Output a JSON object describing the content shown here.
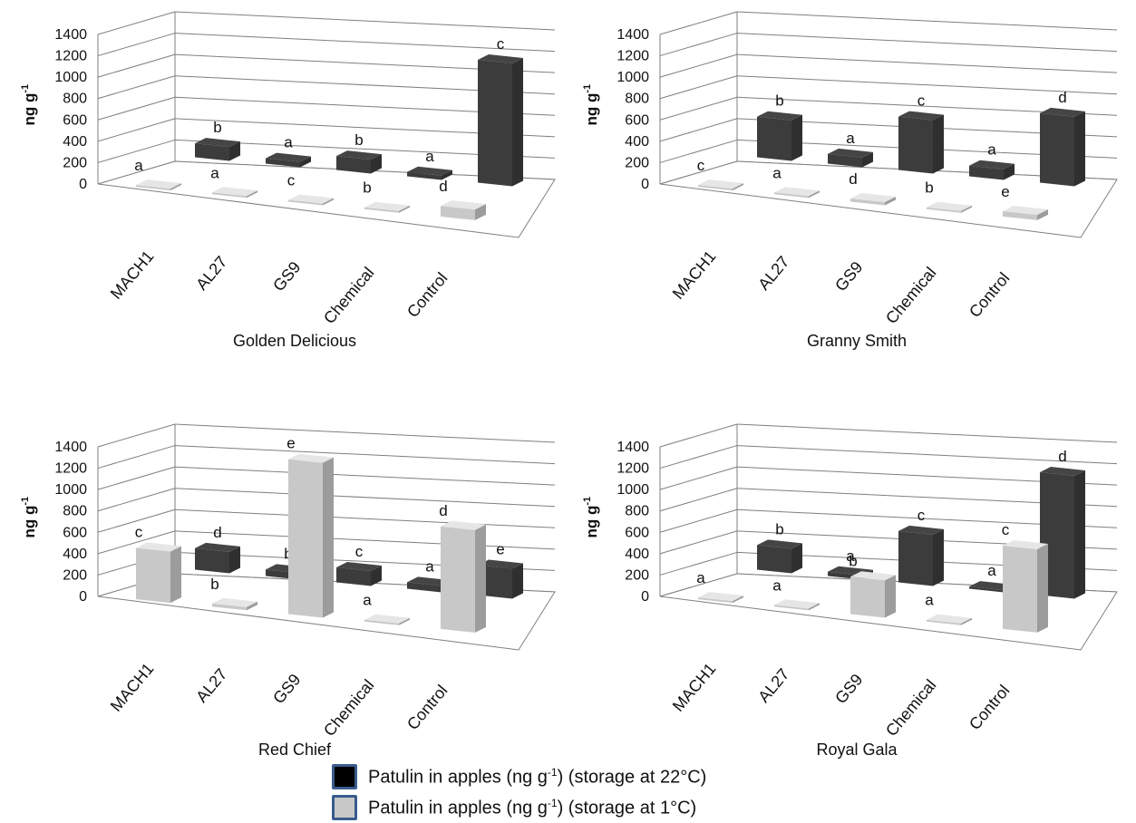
{
  "figure": {
    "yticks": [
      "0",
      "200",
      "400",
      "600",
      "800",
      "1000",
      "1200",
      "1400"
    ],
    "ylabel_main": "ng g",
    "ylabel_sup": "-1",
    "categories": [
      "MACH1",
      "AL27",
      "GS9",
      "Chemical",
      "Control"
    ],
    "colors": {
      "storage_22": "#3c3c3c",
      "storage_1": "#c8c8c8",
      "grid": "#7f7f7f"
    }
  },
  "legend": {
    "items": [
      {
        "pre": "Patulin in apples (ng g",
        "sup": "-1",
        "post": ") (storage at 22°C)",
        "color": "#000000"
      },
      {
        "pre": "Patulin in apples (ng g",
        "sup": "-1",
        "post": ") (storage at 1°C)",
        "color": "#c8c8c8"
      }
    ]
  },
  "chart_data": [
    {
      "type": "bar",
      "title": "Golden Delicious",
      "ylabel": "ng g-1",
      "ylim": [
        0,
        1400
      ],
      "yticks": [
        0,
        200,
        400,
        600,
        800,
        1000,
        1200,
        1400
      ],
      "categories": [
        "MACH1",
        "AL27",
        "GS9",
        "Chemical",
        "Control"
      ],
      "series": [
        {
          "name": "Patulin in apples (ng g-1) (storage at 22°C)",
          "values": [
            130,
            50,
            130,
            40,
            1150
          ],
          "letters": [
            "b",
            "a",
            "b",
            "a",
            "c"
          ]
        },
        {
          "name": "Patulin in apples (ng g-1) (storage at 1°C)",
          "values": [
            0,
            0,
            0,
            0,
            100
          ],
          "letters": [
            "a",
            "a",
            "c",
            "b",
            "d"
          ]
        }
      ]
    },
    {
      "type": "bar",
      "title": "Granny Smith",
      "ylabel": "ng g-1",
      "ylim": [
        0,
        1400
      ],
      "yticks": [
        0,
        200,
        400,
        600,
        800,
        1000,
        1200,
        1400
      ],
      "categories": [
        "MACH1",
        "AL27",
        "GS9",
        "Chemical",
        "Control"
      ],
      "series": [
        {
          "name": "Patulin in apples (ng g-1) (storage at 22°C)",
          "values": [
            380,
            90,
            500,
            100,
            650
          ],
          "letters": [
            "b",
            "a",
            "c",
            "a",
            "d"
          ]
        },
        {
          "name": "Patulin in apples (ng g-1) (storage at 1°C)",
          "values": [
            0,
            0,
            30,
            0,
            50
          ],
          "letters": [
            "c",
            "a",
            "d",
            "b",
            "e"
          ]
        }
      ]
    },
    {
      "type": "bar",
      "title": "Red Chief",
      "ylabel": "ng g-1",
      "ylim": [
        0,
        1400
      ],
      "yticks": [
        0,
        200,
        400,
        600,
        800,
        1000,
        1200,
        1400
      ],
      "categories": [
        "MACH1",
        "AL27",
        "GS9",
        "Chemical",
        "Control"
      ],
      "series": [
        {
          "name": "Patulin in apples (ng g-1) (storage at 22°C)",
          "values": [
            200,
            60,
            140,
            60,
            280
          ],
          "letters": [
            "d",
            "b",
            "c",
            "a",
            "e"
          ]
        },
        {
          "name": "Patulin in apples (ng g-1) (storage at 1°C)",
          "values": [
            480,
            30,
            1450,
            0,
            960
          ],
          "letters": [
            "c",
            "b",
            "e",
            "a",
            "d"
          ]
        }
      ]
    },
    {
      "type": "bar",
      "title": "Royal Gala",
      "ylabel": "ng g-1",
      "ylim": [
        0,
        1400
      ],
      "yticks": [
        0,
        200,
        400,
        600,
        800,
        1000,
        1200,
        1400
      ],
      "categories": [
        "MACH1",
        "AL27",
        "GS9",
        "Chemical",
        "Control"
      ],
      "series": [
        {
          "name": "Patulin in apples (ng g-1) (storage at 22°C)",
          "values": [
            230,
            40,
            480,
            20,
            1150
          ],
          "letters": [
            "b",
            "a",
            "c",
            "a",
            "d"
          ]
        },
        {
          "name": "Patulin in apples (ng g-1) (storage at 1°C)",
          "values": [
            0,
            0,
            350,
            0,
            780
          ],
          "letters": [
            "a",
            "a",
            "b",
            "a",
            "c"
          ]
        }
      ]
    }
  ]
}
